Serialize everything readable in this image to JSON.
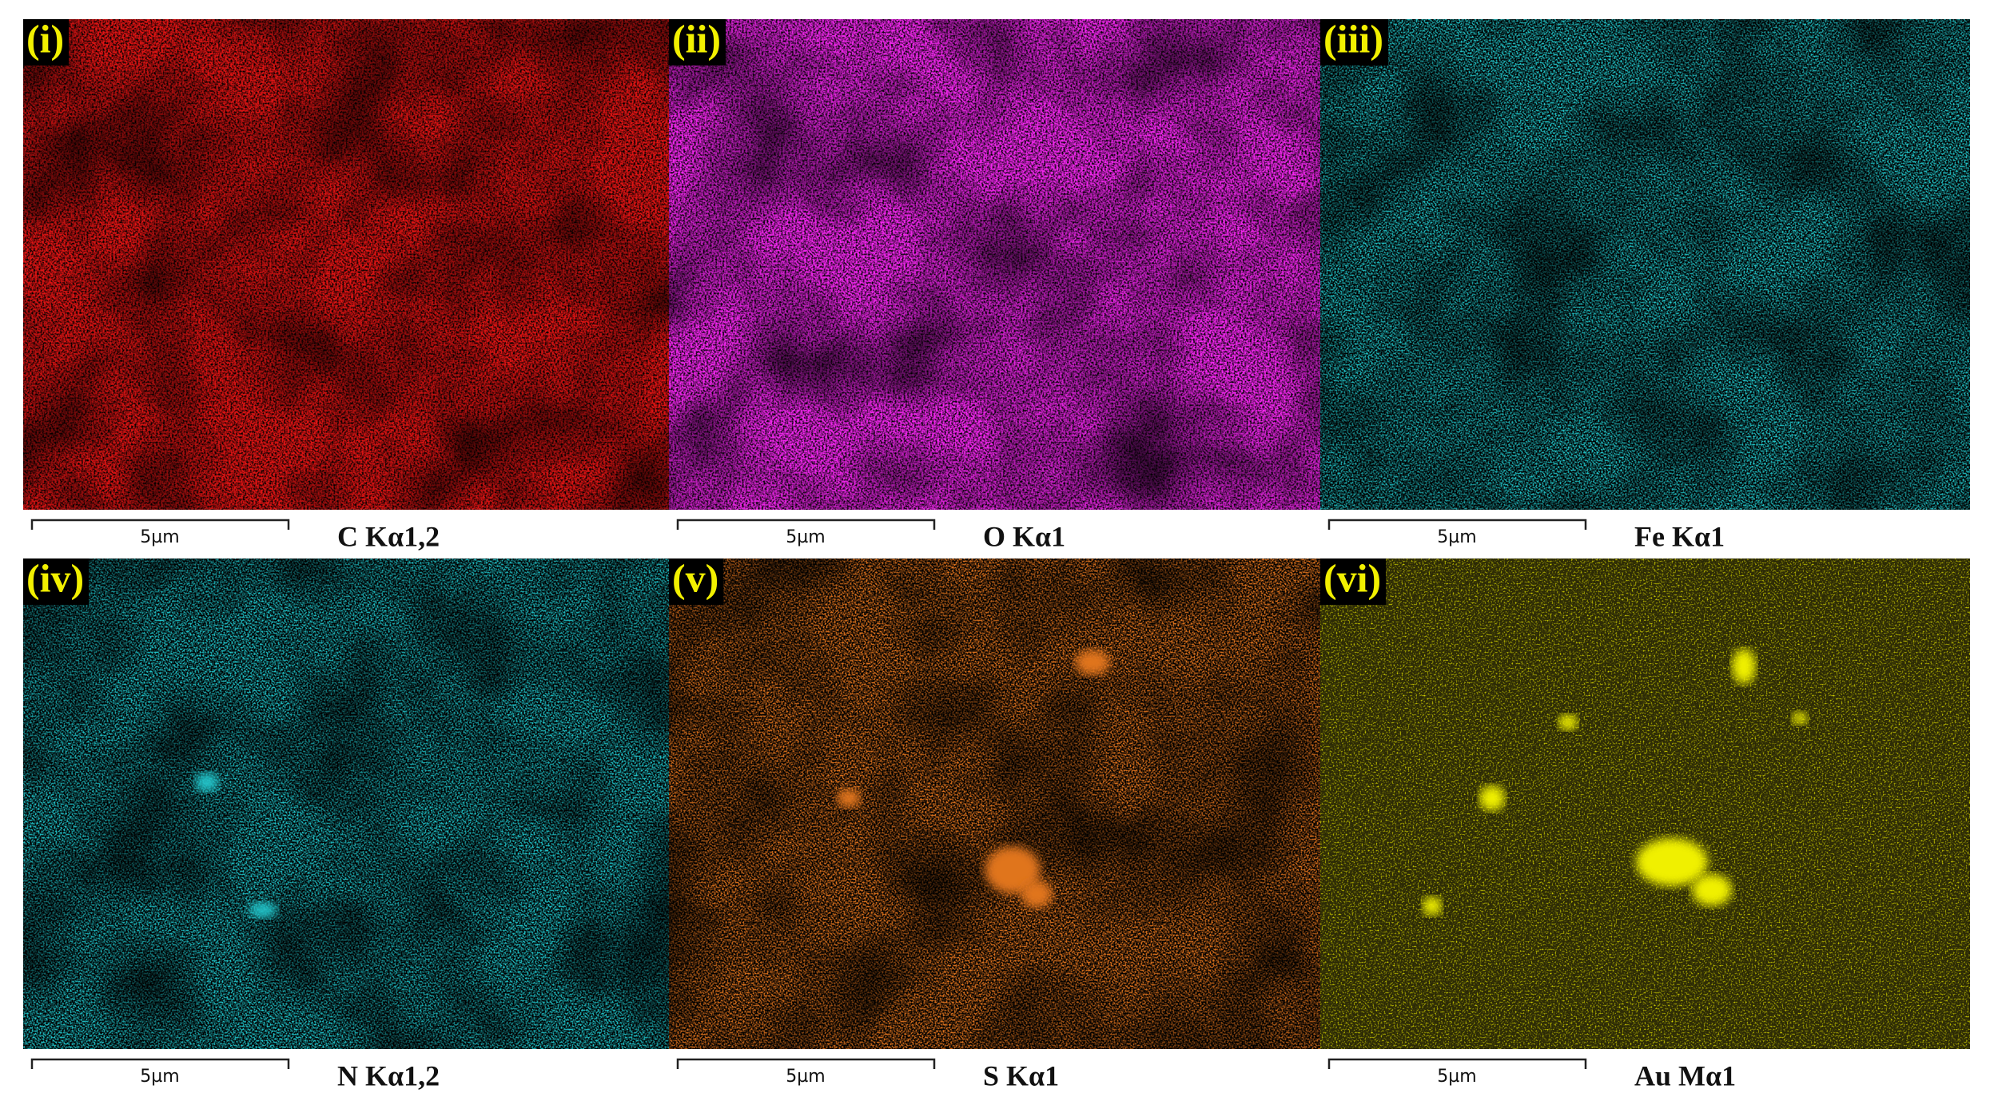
{
  "panels": [
    {
      "label": "(i)",
      "element": "C Kα1,2",
      "scale": "5µm"
    },
    {
      "label": "(ii)",
      "element": "O Kα1",
      "scale": "5µm"
    },
    {
      "label": "(iii)",
      "element": "Fe Kα1",
      "scale": "5µm"
    },
    {
      "label": "(iv)",
      "element": "N Kα1,2",
      "scale": "5µm"
    },
    {
      "label": "(v)",
      "element": "S Kα1",
      "scale": "5µm"
    },
    {
      "label": "(vi)",
      "element": "Au Mα1",
      "scale": "5µm"
    }
  ]
}
